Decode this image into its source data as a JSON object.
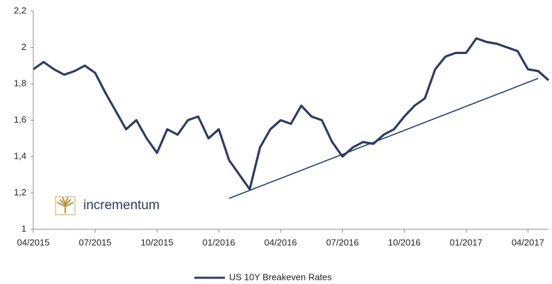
{
  "chart_data": {
    "type": "line",
    "categories": [
      "04/2015",
      null,
      null,
      null,
      null,
      null,
      "07/2015",
      null,
      null,
      null,
      null,
      null,
      "10/2015",
      null,
      null,
      null,
      null,
      null,
      "01/2016",
      null,
      null,
      null,
      null,
      null,
      "04/2016",
      null,
      null,
      null,
      null,
      null,
      "07/2016",
      null,
      null,
      null,
      null,
      null,
      "10/2016",
      null,
      null,
      null,
      null,
      null,
      "01/2017",
      null,
      null,
      null,
      null,
      null,
      "04/2017",
      null,
      null
    ],
    "series": [
      {
        "name": "US 10Y Breakeven Rates",
        "color": "#2d3b63",
        "values": [
          1.88,
          1.92,
          1.88,
          1.85,
          1.87,
          1.9,
          1.86,
          1.75,
          1.65,
          1.55,
          1.6,
          1.5,
          1.42,
          1.55,
          1.52,
          1.6,
          1.62,
          1.5,
          1.55,
          1.38,
          1.3,
          1.22,
          1.45,
          1.55,
          1.6,
          1.58,
          1.68,
          1.62,
          1.6,
          1.48,
          1.4,
          1.45,
          1.48,
          1.47,
          1.52,
          1.55,
          1.62,
          1.68,
          1.72,
          1.88,
          1.95,
          1.97,
          1.97,
          2.05,
          2.03,
          2.02,
          2.0,
          1.98,
          1.88,
          1.87,
          1.82
        ]
      },
      {
        "color": "#1f3c74",
        "values": [
          null,
          null,
          null,
          null,
          null,
          null,
          null,
          null,
          null,
          null,
          null,
          null,
          null,
          null,
          null,
          null,
          null,
          null,
          null,
          1.17,
          1.192,
          1.214,
          1.236,
          1.258,
          1.28,
          1.302,
          1.324,
          1.346,
          1.368,
          1.39,
          1.412,
          1.434,
          1.456,
          1.478,
          1.5,
          1.522,
          1.544,
          1.566,
          1.588,
          1.61,
          1.632,
          1.654,
          1.676,
          1.698,
          1.72,
          1.742,
          1.764,
          1.786,
          1.808,
          1.83,
          null
        ]
      }
    ],
    "ylim": [
      1,
      2.2
    ],
    "yticks": [
      1,
      {
        "value": 1.2,
        "label": "1,2"
      },
      {
        "value": 1.4,
        "label": "1,4"
      },
      {
        "value": 1.6,
        "label": "1,6"
      },
      {
        "value": 1.8,
        "label": "1,8"
      },
      2,
      {
        "value": 2.2,
        "label": "2,2"
      }
    ],
    "grid": false,
    "legend": "bottom",
    "logo": "incrementum"
  }
}
